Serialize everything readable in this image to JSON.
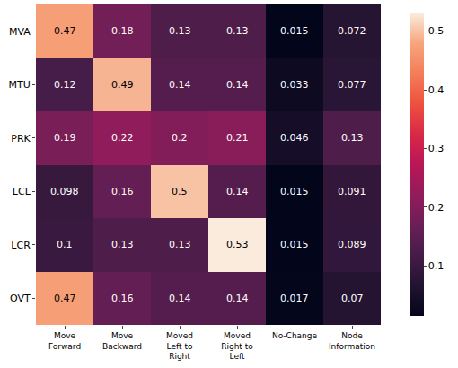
{
  "chart_data": {
    "type": "heatmap",
    "x": [
      "Move\nForward",
      "Move\nBackward",
      "Moved\nLeft to\nRight",
      "Moved\nRight to\nLeft",
      "No-Change",
      "Node\nInformation"
    ],
    "y": [
      "MVA",
      "MTU",
      "PRK",
      "LCL",
      "LCR",
      "OVT"
    ],
    "cells": [
      [
        0.47,
        0.18,
        0.13,
        0.13,
        0.015,
        0.072
      ],
      [
        0.12,
        0.49,
        0.14,
        0.14,
        0.033,
        0.077
      ],
      [
        0.19,
        0.22,
        0.2,
        0.21,
        0.046,
        0.13
      ],
      [
        0.098,
        0.16,
        0.5,
        0.14,
        0.015,
        0.091
      ],
      [
        0.1,
        0.13,
        0.13,
        0.53,
        0.015,
        0.089
      ],
      [
        0.47,
        0.16,
        0.14,
        0.14,
        0.017,
        0.07
      ]
    ],
    "data_labels": true,
    "colorbar": {
      "range": [
        0.015,
        0.53
      ],
      "ticks": [
        0.1,
        0.2,
        0.3,
        0.4,
        0.5
      ]
    }
  }
}
